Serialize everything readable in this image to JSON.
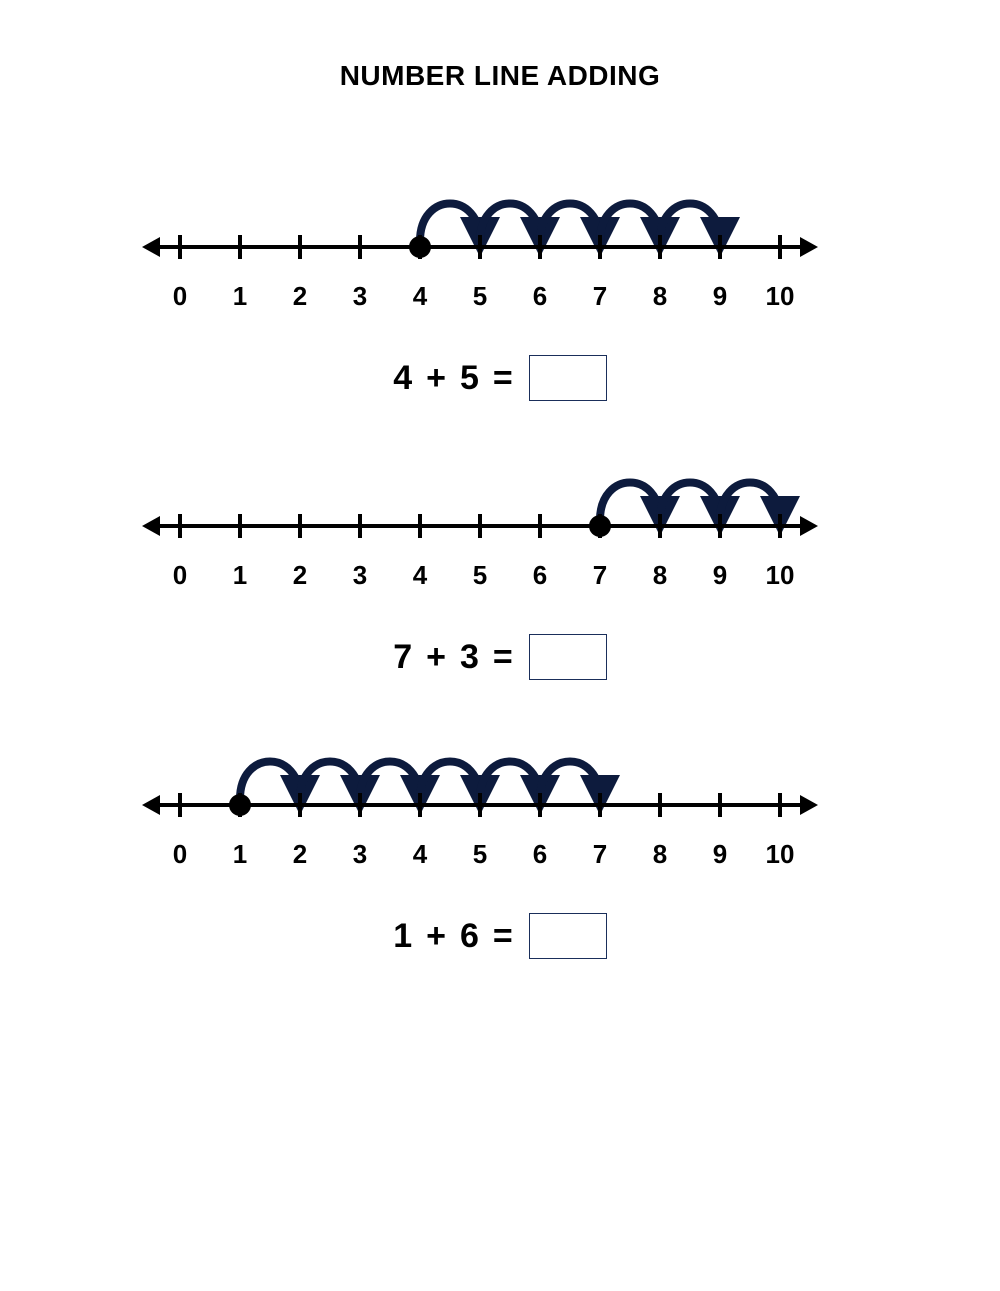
{
  "title": "NUMBER LINE ADDING",
  "colors": {
    "background": "#ffffff",
    "line": "#000000",
    "arc": "#0d1b3d",
    "dot": "#000000",
    "answerBoxBorder": "#1a2e5a",
    "text": "#000000"
  },
  "numberLine": {
    "min": 0,
    "max": 10,
    "tickLabels": [
      "0",
      "1",
      "2",
      "3",
      "4",
      "5",
      "6",
      "7",
      "8",
      "9",
      "10"
    ],
    "tickSpacing": 60,
    "tickHeight": 24,
    "lineStrokeWidth": 4,
    "labelFontSize": 26,
    "labelFontWeight": 900,
    "arcStrokeWidth": 8,
    "dotRadius": 11,
    "arrowHeadSize": 14
  },
  "problems": [
    {
      "start": 4,
      "add": 5,
      "equation": {
        "a": "4",
        "op": "+",
        "b": "5",
        "eq": "="
      }
    },
    {
      "start": 7,
      "add": 3,
      "equation": {
        "a": "7",
        "op": "+",
        "b": "3",
        "eq": "="
      }
    },
    {
      "start": 1,
      "add": 6,
      "equation": {
        "a": "1",
        "op": "+",
        "b": "6",
        "eq": "="
      }
    }
  ]
}
